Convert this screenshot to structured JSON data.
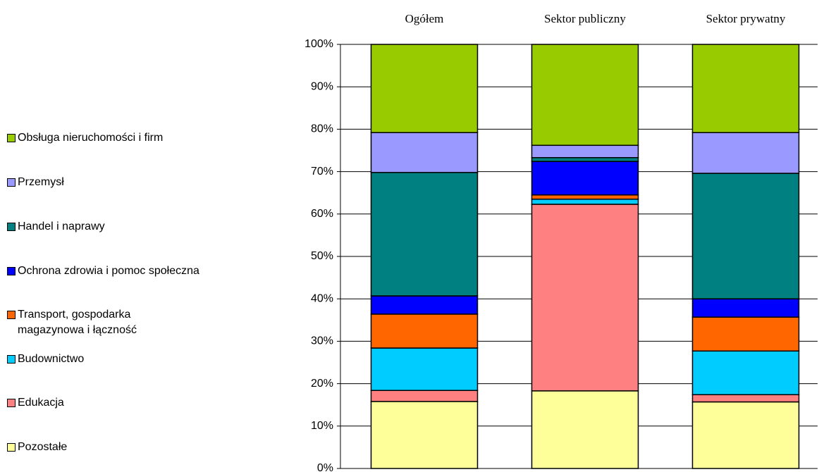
{
  "chart_data": {
    "type": "stacked_bar",
    "categories": [
      "Ogółem",
      "Sektor publiczny",
      "Sektor prywatny"
    ],
    "series": [
      {
        "name": "Pozostałe",
        "color": "#ffff99",
        "values": [
          15.8,
          18.3,
          15.7
        ]
      },
      {
        "name": "Edukacja",
        "color": "#ff8080",
        "values": [
          2.6,
          44.0,
          1.7
        ]
      },
      {
        "name": "Budownictwo",
        "color": "#00ccff",
        "values": [
          10.0,
          1.2,
          10.3
        ]
      },
      {
        "name": "Transport, gospodarka magazynowa i łączność",
        "color": "#ff6600",
        "values": [
          8.0,
          1.0,
          8.0
        ]
      },
      {
        "name": "Ochrona zdrowia i pomoc społeczna",
        "color": "#0000ff",
        "values": [
          4.3,
          7.9,
          4.3
        ]
      },
      {
        "name": "Handel i naprawy",
        "color": "#008080",
        "values": [
          29.1,
          0.9,
          29.6
        ]
      },
      {
        "name": "Przemysł",
        "color": "#9999ff",
        "values": [
          9.4,
          2.9,
          9.6
        ]
      },
      {
        "name": "Obsługa nieruchomości i firm",
        "color": "#99cc00",
        "values": [
          20.8,
          23.8,
          20.8
        ]
      }
    ],
    "ylim": [
      0,
      100
    ],
    "yticks": [
      {
        "value": 0,
        "label": "0%"
      },
      {
        "value": 10,
        "label": "10%"
      },
      {
        "value": 20,
        "label": "20%"
      },
      {
        "value": 30,
        "label": "30%"
      },
      {
        "value": 40,
        "label": "40%"
      },
      {
        "value": 50,
        "label": "50%"
      },
      {
        "value": 60,
        "label": "60%"
      },
      {
        "value": 70,
        "label": "70%"
      },
      {
        "value": 80,
        "label": "80%"
      },
      {
        "value": 90,
        "label": "90%"
      },
      {
        "value": 100,
        "label": "100%"
      }
    ],
    "grid": true,
    "legend": "left"
  }
}
